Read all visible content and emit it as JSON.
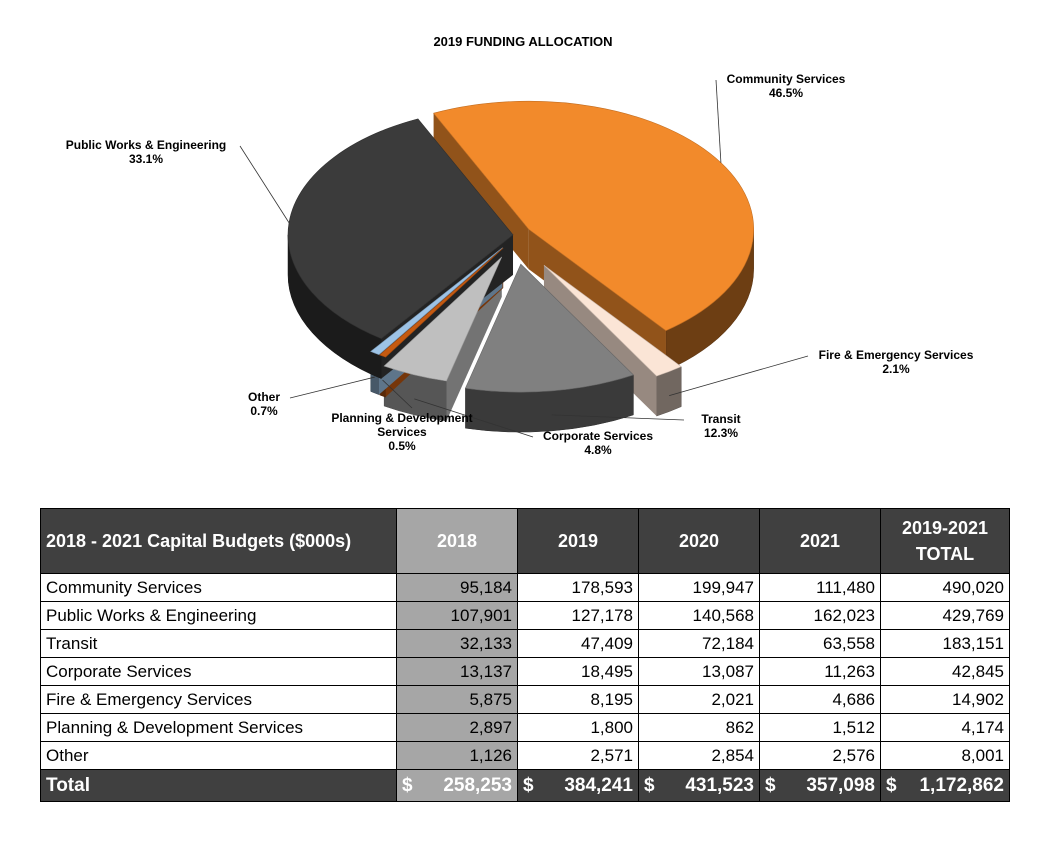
{
  "chart_data": {
    "type": "pie",
    "title": "2019 FUNDING ALLOCATION",
    "slices": [
      {
        "label": "Community Services",
        "percent_label": "46.5%",
        "value": 46.5,
        "color": "#f28a2b"
      },
      {
        "label": "Fire & Emergency Services",
        "percent_label": "2.1%",
        "value": 2.1,
        "color": "#fbe5d6"
      },
      {
        "label": "Transit",
        "percent_label": "12.3%",
        "value": 12.3,
        "color": "#808080"
      },
      {
        "label": "Corporate Services",
        "percent_label": "4.8%",
        "value": 4.8,
        "color": "#bfbfbf"
      },
      {
        "label": "Planning & Development Services",
        "percent_label": "0.5%",
        "value": 0.5,
        "color": "#c55a11"
      },
      {
        "label": "Other",
        "percent_label": "0.7%",
        "value": 0.7,
        "color": "#9dc3e6"
      },
      {
        "label": "Public Works & Engineering",
        "percent_label": "33.1%",
        "value": 33.1,
        "color": "#3b3b3b"
      }
    ]
  },
  "table": {
    "header": [
      "2018 - 2021 Capital Budgets ($000s)",
      "2018",
      "2019",
      "2020",
      "2021",
      "2019-2021 TOTAL"
    ],
    "rows": [
      {
        "label": "Community Services",
        "values": [
          "95,184",
          "178,593",
          "199,947",
          "111,480",
          "490,020"
        ]
      },
      {
        "label": "Public Works & Engineering",
        "values": [
          "107,901",
          "127,178",
          "140,568",
          "162,023",
          "429,769"
        ]
      },
      {
        "label": "Transit",
        "values": [
          "32,133",
          "47,409",
          "72,184",
          "63,558",
          "183,151"
        ]
      },
      {
        "label": "Corporate Services",
        "values": [
          "13,137",
          "18,495",
          "13,087",
          "11,263",
          "42,845"
        ]
      },
      {
        "label": "Fire & Emergency Services",
        "values": [
          "5,875",
          "8,195",
          "2,021",
          "4,686",
          "14,902"
        ]
      },
      {
        "label": "Planning & Development Services",
        "values": [
          "2,897",
          "1,800",
          "862",
          "1,512",
          "4,174"
        ]
      },
      {
        "label": "Other",
        "values": [
          "1,126",
          "2,571",
          "2,854",
          "2,576",
          "8,001"
        ]
      }
    ],
    "total": {
      "label": "Total",
      "currency": "$",
      "values": [
        "258,253",
        "384,241",
        "431,523",
        "357,098",
        "1,172,862"
      ]
    }
  }
}
